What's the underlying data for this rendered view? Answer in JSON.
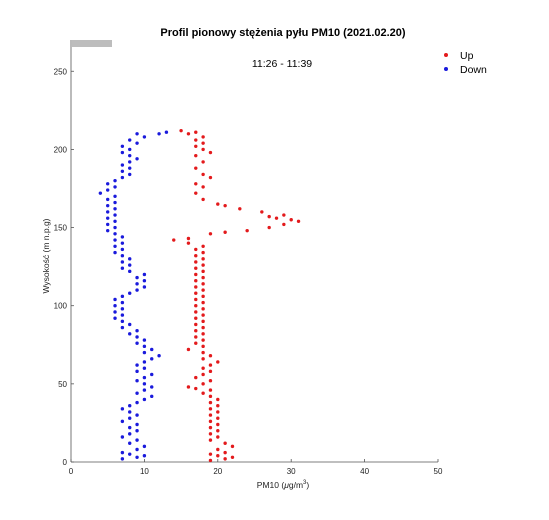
{
  "chart_data": {
    "type": "scatter",
    "title": "Profil pionowy stężenia pyłu PM10 (2021.02.20)",
    "annotation": "11:26 - 11:39",
    "xlabel_prefix": "PM10 (",
    "xlabel_mu": "μ",
    "xlabel_unit": "g/m",
    "xlabel_sup": "3",
    "xlabel_suffix": ")",
    "ylabel": "Wysokość (m n.p.g)",
    "xlim": [
      0,
      50
    ],
    "ylim": [
      0,
      270
    ],
    "xticks": [
      "0",
      "10",
      "20",
      "30",
      "40",
      "50"
    ],
    "yticks": [
      "0",
      "50",
      "100",
      "150",
      "200",
      "250"
    ],
    "legend_position": "top-right",
    "series": [
      {
        "name": "Up",
        "color": "#e31a1c",
        "points": [
          [
            19,
            1
          ],
          [
            21,
            2
          ],
          [
            22,
            3
          ],
          [
            20,
            4
          ],
          [
            19,
            5
          ],
          [
            21,
            6
          ],
          [
            20,
            8
          ],
          [
            22,
            10
          ],
          [
            21,
            12
          ],
          [
            19,
            14
          ],
          [
            20,
            16
          ],
          [
            19,
            18
          ],
          [
            20,
            20
          ],
          [
            19,
            22
          ],
          [
            20,
            24
          ],
          [
            19,
            26
          ],
          [
            20,
            28
          ],
          [
            19,
            30
          ],
          [
            20,
            32
          ],
          [
            19,
            34
          ],
          [
            20,
            36
          ],
          [
            19,
            38
          ],
          [
            20,
            40
          ],
          [
            19,
            42
          ],
          [
            18,
            44
          ],
          [
            17,
            47
          ],
          [
            16,
            48
          ],
          [
            19,
            46
          ],
          [
            18,
            50
          ],
          [
            19,
            52
          ],
          [
            17,
            54
          ],
          [
            18,
            56
          ],
          [
            19,
            58
          ],
          [
            18,
            60
          ],
          [
            19,
            62
          ],
          [
            20,
            64
          ],
          [
            18,
            66
          ],
          [
            19,
            68
          ],
          [
            18,
            70
          ],
          [
            16,
            72
          ],
          [
            18,
            74
          ],
          [
            17,
            76
          ],
          [
            18,
            78
          ],
          [
            17,
            80
          ],
          [
            18,
            82
          ],
          [
            17,
            84
          ],
          [
            18,
            86
          ],
          [
            17,
            88
          ],
          [
            18,
            90
          ],
          [
            17,
            92
          ],
          [
            18,
            94
          ],
          [
            17,
            96
          ],
          [
            18,
            98
          ],
          [
            17,
            100
          ],
          [
            18,
            102
          ],
          [
            17,
            104
          ],
          [
            18,
            106
          ],
          [
            17,
            108
          ],
          [
            18,
            110
          ],
          [
            17,
            112
          ],
          [
            18,
            114
          ],
          [
            17,
            116
          ],
          [
            18,
            118
          ],
          [
            17,
            120
          ],
          [
            18,
            122
          ],
          [
            17,
            124
          ],
          [
            18,
            126
          ],
          [
            17,
            128
          ],
          [
            18,
            130
          ],
          [
            17,
            132
          ],
          [
            18,
            134
          ],
          [
            17,
            136
          ],
          [
            18,
            138
          ],
          [
            16,
            140
          ],
          [
            14,
            142
          ],
          [
            16,
            143
          ],
          [
            19,
            146
          ],
          [
            21,
            147
          ],
          [
            24,
            148
          ],
          [
            27,
            150
          ],
          [
            29,
            152
          ],
          [
            31,
            154
          ],
          [
            30,
            155
          ],
          [
            28,
            156
          ],
          [
            27,
            157
          ],
          [
            29,
            158
          ],
          [
            26,
            160
          ],
          [
            23,
            162
          ],
          [
            21,
            164
          ],
          [
            20,
            165
          ],
          [
            18,
            168
          ],
          [
            17,
            172
          ],
          [
            18,
            176
          ],
          [
            17,
            178
          ],
          [
            19,
            182
          ],
          [
            18,
            184
          ],
          [
            17,
            188
          ],
          [
            18,
            192
          ],
          [
            17,
            196
          ],
          [
            19,
            198
          ],
          [
            18,
            200
          ],
          [
            17,
            202
          ],
          [
            18,
            204
          ],
          [
            17,
            206
          ],
          [
            18,
            208
          ],
          [
            16,
            210
          ],
          [
            17,
            211
          ],
          [
            15,
            212
          ]
        ]
      },
      {
        "name": "Down",
        "color": "#1a1adc",
        "points": [
          [
            7,
            2
          ],
          [
            9,
            3
          ],
          [
            10,
            4
          ],
          [
            8,
            5
          ],
          [
            7,
            6
          ],
          [
            9,
            8
          ],
          [
            10,
            10
          ],
          [
            8,
            12
          ],
          [
            9,
            14
          ],
          [
            7,
            16
          ],
          [
            8,
            18
          ],
          [
            9,
            20
          ],
          [
            8,
            22
          ],
          [
            9,
            24
          ],
          [
            7,
            26
          ],
          [
            8,
            28
          ],
          [
            9,
            30
          ],
          [
            8,
            32
          ],
          [
            7,
            34
          ],
          [
            8,
            36
          ],
          [
            9,
            38
          ],
          [
            10,
            40
          ],
          [
            11,
            42
          ],
          [
            9,
            44
          ],
          [
            10,
            46
          ],
          [
            11,
            48
          ],
          [
            10,
            50
          ],
          [
            9,
            52
          ],
          [
            10,
            54
          ],
          [
            11,
            56
          ],
          [
            9,
            58
          ],
          [
            10,
            60
          ],
          [
            9,
            62
          ],
          [
            10,
            64
          ],
          [
            11,
            66
          ],
          [
            12,
            68
          ],
          [
            10,
            70
          ],
          [
            11,
            72
          ],
          [
            10,
            74
          ],
          [
            9,
            76
          ],
          [
            10,
            78
          ],
          [
            9,
            80
          ],
          [
            8,
            82
          ],
          [
            9,
            84
          ],
          [
            7,
            86
          ],
          [
            8,
            88
          ],
          [
            7,
            90
          ],
          [
            6,
            92
          ],
          [
            7,
            94
          ],
          [
            6,
            96
          ],
          [
            7,
            98
          ],
          [
            6,
            100
          ],
          [
            7,
            102
          ],
          [
            6,
            104
          ],
          [
            7,
            106
          ],
          [
            8,
            108
          ],
          [
            9,
            110
          ],
          [
            10,
            112
          ],
          [
            9,
            114
          ],
          [
            10,
            116
          ],
          [
            9,
            118
          ],
          [
            10,
            120
          ],
          [
            8,
            122
          ],
          [
            7,
            124
          ],
          [
            8,
            126
          ],
          [
            7,
            128
          ],
          [
            8,
            130
          ],
          [
            7,
            132
          ],
          [
            6,
            134
          ],
          [
            7,
            136
          ],
          [
            6,
            138
          ],
          [
            7,
            140
          ],
          [
            6,
            142
          ],
          [
            7,
            144
          ],
          [
            6,
            146
          ],
          [
            5,
            148
          ],
          [
            6,
            150
          ],
          [
            5,
            152
          ],
          [
            6,
            154
          ],
          [
            5,
            156
          ],
          [
            6,
            158
          ],
          [
            5,
            160
          ],
          [
            6,
            162
          ],
          [
            5,
            164
          ],
          [
            6,
            166
          ],
          [
            5,
            168
          ],
          [
            6,
            170
          ],
          [
            4,
            172
          ],
          [
            5,
            174
          ],
          [
            6,
            176
          ],
          [
            5,
            178
          ],
          [
            6,
            180
          ],
          [
            7,
            182
          ],
          [
            8,
            184
          ],
          [
            7,
            186
          ],
          [
            8,
            188
          ],
          [
            7,
            190
          ],
          [
            8,
            192
          ],
          [
            9,
            194
          ],
          [
            8,
            196
          ],
          [
            7,
            198
          ],
          [
            8,
            200
          ],
          [
            7,
            202
          ],
          [
            9,
            204
          ],
          [
            8,
            206
          ],
          [
            10,
            208
          ],
          [
            12,
            210
          ],
          [
            13,
            211
          ],
          [
            9,
            210
          ]
        ]
      }
    ]
  }
}
